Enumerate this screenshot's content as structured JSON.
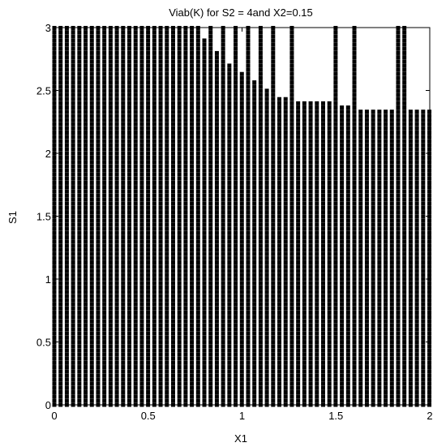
{
  "chart_data": {
    "type": "scatter",
    "title": "Viab(K) for S2 = 4and X2=0.15",
    "xlabel": "X1",
    "ylabel": "S1",
    "xlim": [
      0,
      2
    ],
    "ylim": [
      0,
      3
    ],
    "xticks": [
      "0",
      "0.5",
      "1",
      "1.5",
      "2"
    ],
    "yticks": [
      "0",
      "0.5",
      "1",
      "1.5",
      "2",
      "2.5",
      "3"
    ],
    "grid": false,
    "marker": "filled-square",
    "marker_color": "#000000",
    "series": [
      {
        "grid_x_start": 0,
        "grid_x_step": 0.0333,
        "grid_x_count": 61,
        "grid_y_start": 0,
        "grid_y_step": 0.0333,
        "grid_y_count": 91,
        "upper_boundary": [
          {
            "x_from": 0.0,
            "x_to": 0.75,
            "s1_max": 3.0
          },
          {
            "x_from": 0.7833,
            "x_to": 0.8,
            "s1_max": 2.9
          },
          {
            "x_from": 0.8333,
            "x_to": 0.8667,
            "s1_max": 2.8
          },
          {
            "x_from": 0.9,
            "x_to": 0.9333,
            "s1_max": 2.7
          },
          {
            "x_from": 0.9667,
            "x_to": 1.0,
            "s1_max": 2.6333
          },
          {
            "x_from": 1.0333,
            "x_to": 1.0667,
            "s1_max": 2.5667
          },
          {
            "x_from": 1.1,
            "x_to": 1.1333,
            "s1_max": 2.5
          },
          {
            "x_from": 1.1667,
            "x_to": 1.2333,
            "s1_max": 2.4333
          },
          {
            "x_from": 1.2667,
            "x_to": 1.4667,
            "s1_max": 2.4
          },
          {
            "x_from": 1.5,
            "x_to": 1.5667,
            "s1_max": 2.3667
          },
          {
            "x_from": 1.6,
            "x_to": 1.8,
            "s1_max": 2.3333
          },
          {
            "x_from": 1.8333,
            "x_to": 1.8333,
            "s1_max": 2.4
          },
          {
            "x_from": 1.8667,
            "x_to": 2.0,
            "s1_max": 2.3333
          }
        ]
      }
    ]
  }
}
